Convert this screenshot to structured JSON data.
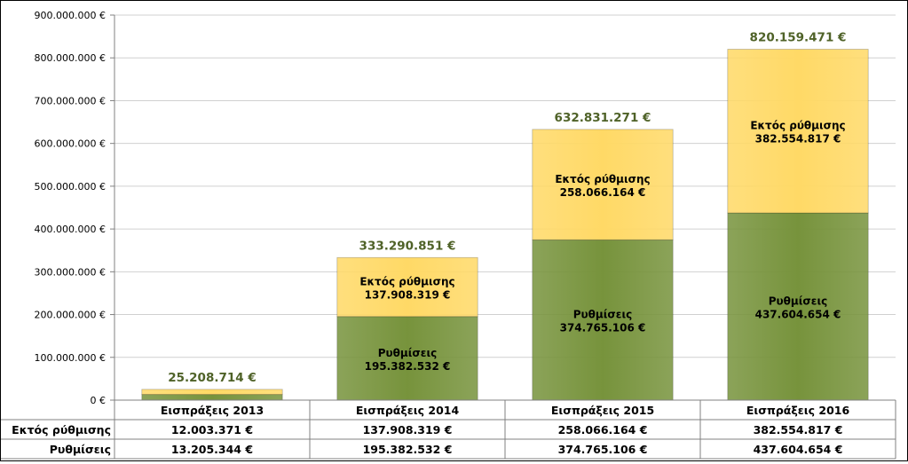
{
  "chart_data": {
    "type": "bar",
    "stacked": true,
    "categories": [
      "Εισπράξεις 2013",
      "Εισπράξεις 2014",
      "Εισπράξεις 2015",
      "Εισπράξεις 2016"
    ],
    "series": [
      {
        "name": "Ρυθμίσεις",
        "values": [
          13205344,
          195382532,
          374765106,
          437604654
        ],
        "value_labels": [
          "13.205.344 €",
          "195.382.532 €",
          "374.765.106 €",
          "437.604.654 €"
        ],
        "color": "#77933c"
      },
      {
        "name": "Εκτός ρύθμισης",
        "values": [
          12003371,
          137908319,
          258066164,
          382554817
        ],
        "value_labels": [
          "12.003.371 €",
          "137.908.319 €",
          "258.066.164 €",
          "382.554.817 €"
        ],
        "color": "#ffd966"
      }
    ],
    "totals": [
      25208714,
      333290851,
      632831271,
      820159471
    ],
    "total_labels": [
      "25.208.714 €",
      "333.290.851 €",
      "632.831.271 €",
      "820.159.471 €"
    ],
    "ylim": [
      0,
      900000000
    ],
    "y_ticks": [
      0,
      100000000,
      200000000,
      300000000,
      400000000,
      500000000,
      600000000,
      700000000,
      800000000,
      900000000
    ],
    "y_tick_labels": [
      "0 €",
      "100.000.000 €",
      "200.000.000 €",
      "300.000.000 €",
      "400.000.000 €",
      "500.000.000 €",
      "600.000.000 €",
      "700.000.000 €",
      "800.000.000 €",
      "900.000.000 €"
    ],
    "data_table": {
      "rows": [
        {
          "label": "Εκτός ρύθμισης",
          "values": [
            "12.003.371 €",
            "137.908.319 €",
            "258.066.164 €",
            "382.554.817 €"
          ]
        },
        {
          "label": "Ρυθμίσεις",
          "values": [
            "13.205.344 €",
            "195.382.532 €",
            "374.765.106 €",
            "437.604.654 €"
          ]
        }
      ]
    },
    "title": "",
    "xlabel": "",
    "ylabel": "",
    "grid": "horizontal",
    "legend": "data-table"
  }
}
